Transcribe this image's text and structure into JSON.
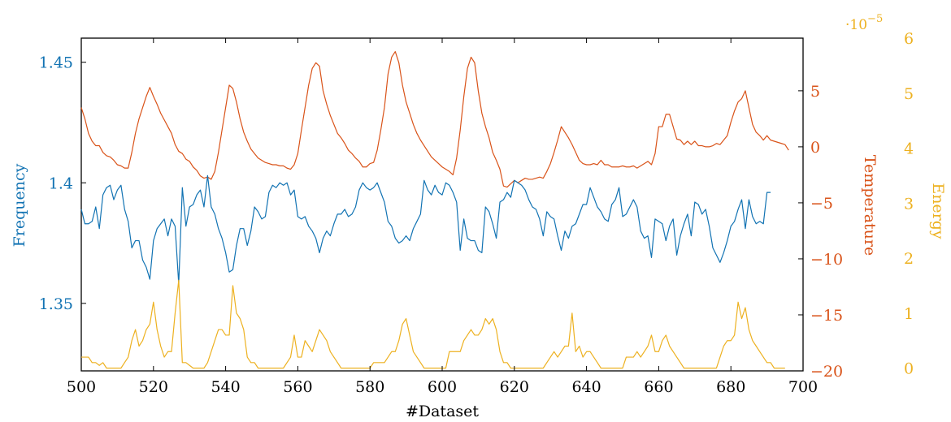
{
  "chart_data": {
    "type": "line",
    "xlabel": "#Dataset",
    "xlim": [
      500,
      700
    ],
    "xticks": [
      500,
      520,
      540,
      560,
      580,
      600,
      620,
      640,
      660,
      680,
      700
    ],
    "grid": false,
    "axes": [
      {
        "id": "frequency",
        "label": "Frequency",
        "side": "left",
        "color": "#1273b3",
        "ylim": [
          1.322,
          1.46
        ],
        "ticks": [
          1.35,
          1.4,
          1.45
        ],
        "tick_labels": [
          "1.35",
          "1.4",
          "1.45"
        ]
      },
      {
        "id": "temperature",
        "label": "Temperature",
        "side": "right",
        "color": "#d95319",
        "ylim": [
          -20,
          9.7
        ],
        "ticks": [
          -20,
          -15,
          -10,
          -5,
          0,
          5
        ],
        "tick_labels": [
          "−20",
          "−15",
          "−10",
          "−5",
          "0",
          "5"
        ]
      },
      {
        "id": "energy",
        "label": "Energy",
        "side": "right-outer",
        "color": "#edb120",
        "ylim": [
          -0.05,
          6.0
        ],
        "ticks": [
          0,
          1,
          2,
          3,
          4,
          5,
          6
        ],
        "tick_labels": [
          "0",
          "1",
          "2",
          "3",
          "4",
          "5",
          "6"
        ],
        "multiplier": "·10",
        "multiplier_exp": "−5"
      }
    ],
    "series": [
      {
        "axis": "temperature",
        "x_start": 500,
        "x_step": 1,
        "values": [
          3.5,
          2.5,
          1.2,
          0.5,
          0.1,
          0.1,
          -0.5,
          -0.8,
          -0.9,
          -1.2,
          -1.6,
          -1.7,
          -1.9,
          -1.9,
          -0.5,
          1.2,
          2.5,
          3.5,
          4.5,
          5.3,
          4.5,
          3.8,
          3.0,
          2.4,
          1.8,
          1.2,
          0.2,
          -0.4,
          -0.6,
          -1.1,
          -1.3,
          -1.8,
          -2.1,
          -2.6,
          -2.8,
          -2.7,
          -2.9,
          -2.2,
          -0.5,
          1.5,
          3.5,
          5.5,
          5.2,
          4.0,
          2.5,
          1.3,
          0.5,
          -0.2,
          -0.6,
          -1.0,
          -1.2,
          -1.4,
          -1.5,
          -1.6,
          -1.6,
          -1.7,
          -1.7,
          -1.9,
          -2.0,
          -1.6,
          -0.6,
          1.5,
          3.5,
          5.5,
          7.0,
          7.5,
          7.2,
          5.0,
          3.8,
          2.8,
          2.0,
          1.2,
          0.8,
          0.3,
          -0.3,
          -0.6,
          -1.0,
          -1.3,
          -1.8,
          -1.8,
          -1.5,
          -1.4,
          -0.3,
          1.5,
          3.5,
          6.5,
          8.0,
          8.5,
          7.5,
          5.5,
          4.0,
          3.0,
          2.0,
          1.2,
          0.6,
          0.1,
          -0.4,
          -0.9,
          -1.2,
          -1.5,
          -1.8,
          -2.0,
          -2.2,
          -2.5,
          -1.0,
          1.5,
          4.5,
          7.0,
          8.0,
          7.5,
          5.0,
          3.0,
          1.8,
          0.8,
          -0.5,
          -1.2,
          -2.0,
          -3.5,
          -3.6,
          -3.3,
          -3.0,
          -3.2,
          -3.0,
          -2.8,
          -2.9,
          -2.9,
          -2.8,
          -2.7,
          -2.8,
          -2.2,
          -1.5,
          -0.5,
          0.6,
          1.8,
          1.3,
          0.8,
          0.2,
          -0.5,
          -1.2,
          -1.5,
          -1.6,
          -1.6,
          -1.5,
          -1.6,
          -1.2,
          -1.6,
          -1.6,
          -1.8,
          -1.8,
          -1.8,
          -1.7,
          -1.8,
          -1.8,
          -1.7,
          -1.9,
          -1.7,
          -1.5,
          -1.3,
          -1.6,
          -0.6,
          1.8,
          1.8,
          2.9,
          2.9,
          1.8,
          0.7,
          0.6,
          0.2,
          0.5,
          0.2,
          0.5,
          0.1,
          0.1,
          0.0,
          0.0,
          0.1,
          0.3,
          0.2,
          0.6,
          1.0,
          2.2,
          3.2,
          4.0,
          4.3,
          5.0,
          3.5,
          2.0,
          1.3,
          1.0,
          0.6,
          1.0,
          0.6,
          0.5,
          0.4,
          0.3,
          0.2,
          -0.3
        ]
      },
      {
        "axis": "frequency",
        "x_start": 500,
        "x_step": 1,
        "values": [
          1.389,
          1.383,
          1.383,
          1.384,
          1.39,
          1.381,
          1.395,
          1.398,
          1.399,
          1.393,
          1.397,
          1.399,
          1.389,
          1.384,
          1.373,
          1.376,
          1.376,
          1.368,
          1.365,
          1.36,
          1.376,
          1.381,
          1.383,
          1.385,
          1.378,
          1.385,
          1.382,
          1.358,
          1.398,
          1.382,
          1.39,
          1.391,
          1.395,
          1.397,
          1.39,
          1.403,
          1.39,
          1.387,
          1.381,
          1.377,
          1.371,
          1.363,
          1.364,
          1.374,
          1.381,
          1.381,
          1.374,
          1.38,
          1.39,
          1.388,
          1.385,
          1.386,
          1.396,
          1.399,
          1.398,
          1.4,
          1.399,
          1.4,
          1.395,
          1.397,
          1.386,
          1.385,
          1.386,
          1.382,
          1.38,
          1.377,
          1.371,
          1.377,
          1.38,
          1.378,
          1.383,
          1.387,
          1.387,
          1.389,
          1.386,
          1.387,
          1.39,
          1.397,
          1.4,
          1.398,
          1.397,
          1.398,
          1.4,
          1.396,
          1.392,
          1.384,
          1.382,
          1.377,
          1.375,
          1.376,
          1.378,
          1.376,
          1.381,
          1.384,
          1.387,
          1.401,
          1.397,
          1.395,
          1.399,
          1.396,
          1.395,
          1.4,
          1.399,
          1.396,
          1.392,
          1.372,
          1.385,
          1.377,
          1.376,
          1.376,
          1.372,
          1.371,
          1.39,
          1.388,
          1.383,
          1.377,
          1.392,
          1.393,
          1.396,
          1.394,
          1.401,
          1.4,
          1.399,
          1.397,
          1.393,
          1.39,
          1.389,
          1.385,
          1.378,
          1.388,
          1.386,
          1.385,
          1.378,
          1.372,
          1.38,
          1.377,
          1.382,
          1.383,
          1.387,
          1.391,
          1.391,
          1.398,
          1.394,
          1.39,
          1.388,
          1.385,
          1.384,
          1.391,
          1.393,
          1.398,
          1.386,
          1.387,
          1.39,
          1.393,
          1.39,
          1.38,
          1.377,
          1.378,
          1.369,
          1.385,
          1.384,
          1.383,
          1.376,
          1.382,
          1.385,
          1.37,
          1.378,
          1.383,
          1.387,
          1.378,
          1.392,
          1.391,
          1.387,
          1.389,
          1.382,
          1.373,
          1.37,
          1.367,
          1.371,
          1.376,
          1.382,
          1.384,
          1.389,
          1.393,
          1.381,
          1.393,
          1.386,
          1.383,
          1.384,
          1.383,
          1.396,
          1.396
        ]
      },
      {
        "axis": "energy",
        "x_start": 500,
        "x_step": 1,
        "values": [
          0.2,
          0.2,
          0.2,
          0.1,
          0.1,
          0.05,
          0.1,
          0.0,
          0.0,
          0.0,
          0.0,
          0.0,
          0.1,
          0.2,
          0.5,
          0.7,
          0.4,
          0.5,
          0.7,
          0.8,
          1.2,
          0.7,
          0.4,
          0.2,
          0.3,
          0.3,
          1.0,
          1.6,
          0.1,
          0.1,
          0.05,
          0.0,
          0.0,
          0.0,
          0.0,
          0.1,
          0.3,
          0.5,
          0.7,
          0.7,
          0.6,
          0.6,
          1.5,
          1.0,
          0.9,
          0.7,
          0.2,
          0.1,
          0.1,
          0.0,
          0.0,
          0.0,
          0.0,
          0.0,
          0.0,
          0.0,
          0.0,
          0.1,
          0.2,
          0.6,
          0.2,
          0.2,
          0.5,
          0.4,
          0.3,
          0.5,
          0.7,
          0.6,
          0.5,
          0.3,
          0.2,
          0.1,
          0.0,
          0.0,
          0.0,
          0.0,
          0.0,
          0.0,
          0.0,
          0.0,
          0.0,
          0.1,
          0.1,
          0.1,
          0.1,
          0.2,
          0.3,
          0.3,
          0.5,
          0.8,
          0.9,
          0.6,
          0.3,
          0.2,
          0.1,
          0.0,
          0.0,
          0.0,
          0.0,
          0.0,
          0.0,
          0.0,
          0.3,
          0.3,
          0.3,
          0.3,
          0.5,
          0.6,
          0.7,
          0.6,
          0.6,
          0.7,
          0.9,
          0.8,
          0.9,
          0.7,
          0.3,
          0.1,
          0.1,
          0.0,
          0.0,
          0.0,
          0.0,
          0.0,
          0.0,
          0.0,
          0.0,
          0.0,
          0.0,
          0.1,
          0.2,
          0.3,
          0.2,
          0.3,
          0.4,
          0.4,
          1.0,
          0.3,
          0.4,
          0.2,
          0.3,
          0.3,
          0.2,
          0.1,
          0.0,
          0.0,
          0.0,
          0.0,
          0.0,
          0.0,
          0.0,
          0.2,
          0.2,
          0.2,
          0.3,
          0.2,
          0.3,
          0.4,
          0.6,
          0.3,
          0.3,
          0.5,
          0.6,
          0.4,
          0.3,
          0.2,
          0.1,
          0.0,
          0.0,
          0.0,
          0.0,
          0.0,
          0.0,
          0.0,
          0.0,
          0.0,
          0.0,
          0.2,
          0.4,
          0.5,
          0.5,
          0.6,
          1.2,
          0.9,
          1.1,
          0.7,
          0.5,
          0.4,
          0.3,
          0.2,
          0.1,
          0.1,
          0.0,
          0.0,
          0.0,
          0.0
        ]
      }
    ]
  }
}
